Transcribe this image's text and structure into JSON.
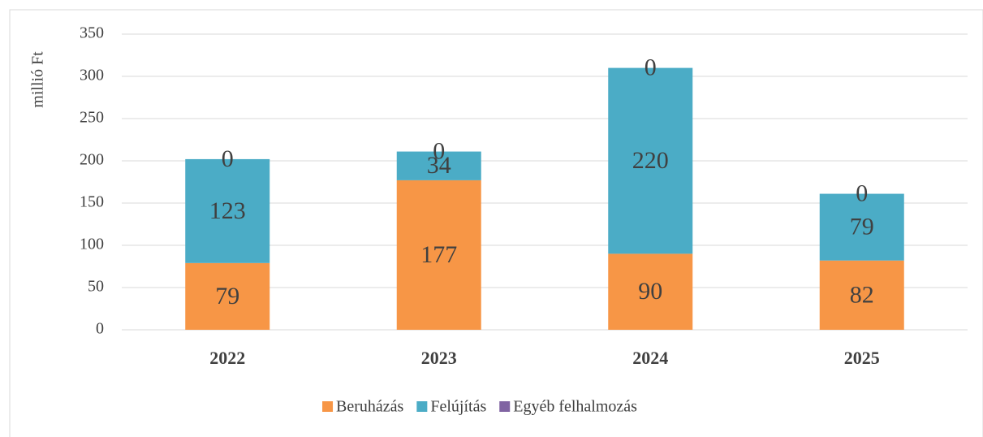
{
  "chart_data": {
    "type": "stacked_bar",
    "y_axis_label": "millió Ft",
    "categories": [
      "2022",
      "2023",
      "2024",
      "2025"
    ],
    "series": [
      {
        "name": "Beruházás",
        "color": "#f79646",
        "values": [
          79,
          177,
          90,
          82
        ]
      },
      {
        "name": "Felújítás",
        "color": "#4bacc6",
        "values": [
          123,
          34,
          220,
          79
        ]
      },
      {
        "name": "Egyéb felhalmozás",
        "color": "#8064a2",
        "values": [
          0,
          0,
          0,
          0
        ]
      }
    ],
    "ylim": [
      0,
      350
    ],
    "yticks": [
      0,
      50,
      100,
      150,
      200,
      250,
      300,
      350
    ],
    "grid": true,
    "legend": "bottom"
  }
}
